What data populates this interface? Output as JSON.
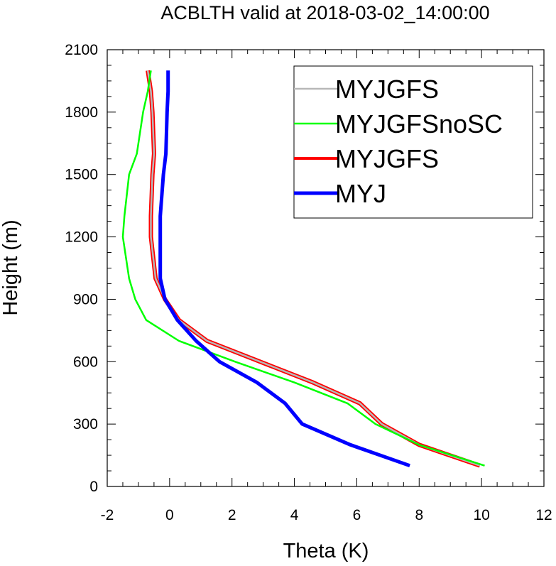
{
  "chart_data": {
    "type": "line",
    "title": "ACBLTH valid at 2018-03-02_14:00:00",
    "xlabel": "Theta (K)",
    "ylabel": "Height (m)",
    "xlim": [
      -2,
      12
    ],
    "ylim": [
      0,
      2100
    ],
    "xticks": [
      "-2",
      "0",
      "2",
      "4",
      "6",
      "8",
      "10",
      "12"
    ],
    "yticks": [
      "0",
      "300",
      "600",
      "900",
      "1200",
      "1500",
      "1800",
      "2100"
    ],
    "legend_position": "top-right",
    "series": [
      {
        "name": "MYJGFS",
        "color": "#b8b8b8",
        "x": [
          9.95,
          8.0,
          6.8,
          6.1,
          4.6,
          2.9,
          1.2,
          0.3,
          -0.15,
          -0.45,
          -0.6,
          -0.6,
          -0.55,
          -0.5,
          -0.55,
          -0.6,
          -0.7
        ],
        "y": [
          100,
          200,
          300,
          400,
          500,
          600,
          700,
          800,
          900,
          1000,
          1200,
          1300,
          1500,
          1600,
          1800,
          1900,
          2000
        ]
      },
      {
        "name": "MYJGFSnoSC",
        "color": "#00ff00",
        "x": [
          10.1,
          8.0,
          6.6,
          5.7,
          4.0,
          2.1,
          0.3,
          -0.75,
          -1.1,
          -1.3,
          -1.5,
          -1.45,
          -1.3,
          -1.05,
          -0.85,
          -0.7,
          -0.6
        ],
        "y": [
          100,
          200,
          300,
          400,
          500,
          600,
          700,
          800,
          900,
          1000,
          1200,
          1300,
          1500,
          1600,
          1800,
          1900,
          2000
        ]
      },
      {
        "name": "MYJGFS",
        "color": "#ff0000",
        "x": [
          9.95,
          8.0,
          6.8,
          6.1,
          4.6,
          2.9,
          1.2,
          0.3,
          -0.15,
          -0.45,
          -0.6,
          -0.6,
          -0.55,
          -0.5,
          -0.55,
          -0.6,
          -0.7
        ],
        "y": [
          100,
          200,
          300,
          400,
          500,
          600,
          700,
          800,
          900,
          1000,
          1200,
          1300,
          1500,
          1600,
          1800,
          1900,
          2000
        ]
      },
      {
        "name": "MYJ",
        "color": "#0000ff",
        "x": [
          7.7,
          5.8,
          4.25,
          3.7,
          2.8,
          1.6,
          0.85,
          0.25,
          -0.15,
          -0.3,
          -0.3,
          -0.3,
          -0.2,
          -0.12,
          -0.08,
          -0.05,
          -0.05
        ],
        "y": [
          100,
          200,
          300,
          400,
          500,
          600,
          700,
          800,
          900,
          1000,
          1200,
          1300,
          1500,
          1600,
          1800,
          1900,
          2000
        ]
      }
    ]
  }
}
